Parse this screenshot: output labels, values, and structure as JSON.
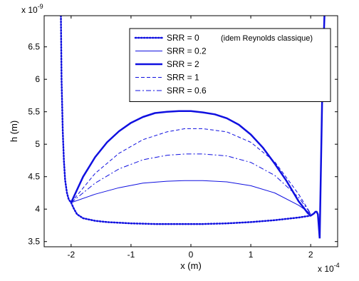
{
  "chart_data": {
    "type": "line",
    "xlabel": "x (m)",
    "ylabel": "h (m)",
    "x_multiplier": "x 10",
    "x_multiplier_exp": "-4",
    "y_multiplier": "x 10",
    "y_multiplier_exp": "-9",
    "xlim": [
      -2.45,
      2.45
    ],
    "ylim": [
      3.42,
      6.98
    ],
    "x_ticks": [
      -2,
      -1,
      0,
      1,
      2
    ],
    "x_tick_labels": [
      "-2",
      "-1",
      "0",
      "1",
      "2"
    ],
    "y_ticks": [
      3.5,
      4,
      4.5,
      5,
      5.5,
      6,
      6.5
    ],
    "y_tick_labels": [
      "3.5",
      "4",
      "4.5",
      "5",
      "5.5",
      "6",
      "6.5"
    ],
    "grid": false,
    "legend_position": "top-right",
    "legend_note": "(idem Reynolds classique)",
    "series": [
      {
        "name": "SRR = 0",
        "color": "#1010e0",
        "style": "dotted",
        "x": [
          -2.17,
          -2.16,
          -2.14,
          -2.12,
          -2.1,
          -2.07,
          -2.04,
          -2.0,
          -1.95,
          -1.9,
          -1.8,
          -1.6,
          -1.4,
          -1.2,
          -1.0,
          -0.6,
          -0.2,
          0.0,
          0.2,
          0.6,
          1.0,
          1.4,
          1.8,
          2.0
        ],
        "y": [
          6.98,
          6.0,
          5.2,
          4.75,
          4.45,
          4.25,
          4.15,
          4.1,
          4.0,
          3.92,
          3.86,
          3.82,
          3.8,
          3.79,
          3.78,
          3.77,
          3.77,
          3.77,
          3.77,
          3.78,
          3.8,
          3.83,
          3.87,
          3.9
        ]
      },
      {
        "name": "SRR = 0.2",
        "color": "#1010e0",
        "style": "solid",
        "x": [
          -2.0,
          -1.6,
          -1.2,
          -0.8,
          -0.4,
          -0.1,
          0.2,
          0.6,
          1.0,
          1.4,
          1.8,
          2.0
        ],
        "y": [
          4.1,
          4.23,
          4.33,
          4.4,
          4.43,
          4.44,
          4.44,
          4.42,
          4.36,
          4.25,
          4.06,
          3.93
        ]
      },
      {
        "name": "SRR = 2",
        "color": "#1010e0",
        "style": "thick",
        "x": [
          -2.0,
          -1.8,
          -1.6,
          -1.4,
          -1.2,
          -1.0,
          -0.8,
          -0.6,
          -0.4,
          -0.2,
          -0.1,
          0.0,
          0.2,
          0.4,
          0.6,
          0.8,
          1.0,
          1.2,
          1.4,
          1.6,
          1.8,
          1.9,
          1.95,
          2.0,
          2.05,
          2.08,
          2.1,
          2.12,
          2.15
        ],
        "y": [
          4.1,
          4.5,
          4.8,
          5.03,
          5.2,
          5.33,
          5.42,
          5.48,
          5.5,
          5.51,
          5.51,
          5.51,
          5.49,
          5.46,
          5.4,
          5.3,
          5.15,
          4.95,
          4.7,
          4.43,
          4.12,
          4.0,
          3.94,
          3.9,
          3.93,
          3.96,
          3.96,
          3.92,
          3.55
        ]
      },
      {
        "name": "SRR = 1",
        "color": "#1010e0",
        "style": "dashed",
        "x": [
          -2.0,
          -1.6,
          -1.2,
          -0.8,
          -0.4,
          -0.1,
          0.2,
          0.6,
          1.0,
          1.4,
          1.8,
          2.0
        ],
        "y": [
          4.1,
          4.55,
          4.86,
          5.07,
          5.19,
          5.24,
          5.24,
          5.19,
          5.03,
          4.73,
          4.23,
          3.93
        ]
      },
      {
        "name": "SRR = 0.6",
        "color": "#1010e0",
        "style": "dashdot",
        "x": [
          -2.0,
          -1.6,
          -1.2,
          -0.8,
          -0.4,
          -0.1,
          0.2,
          0.6,
          1.0,
          1.4,
          1.8,
          2.0
        ],
        "y": [
          4.1,
          4.4,
          4.62,
          4.76,
          4.83,
          4.85,
          4.85,
          4.82,
          4.72,
          4.52,
          4.18,
          3.93
        ]
      }
    ],
    "extra_segments": [
      {
        "color": "#1010e0",
        "style": "thick",
        "x": [
          2.15,
          2.17,
          2.19,
          2.21,
          2.23
        ],
        "y": [
          3.55,
          4.6,
          5.6,
          6.4,
          6.98
        ]
      }
    ]
  }
}
